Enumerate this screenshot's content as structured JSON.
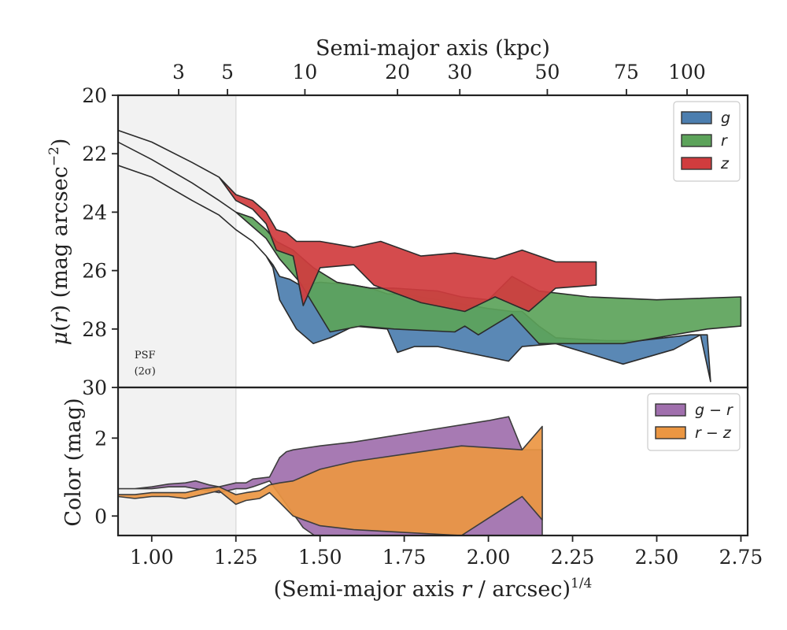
{
  "chart_data": [
    {
      "type": "area",
      "panel": "surface-brightness",
      "xlabel_bottom": "(Semi-major axis r / arcsec)^1/4",
      "xlabel_top": "Semi-major axis (kpc)",
      "ylabel": "μ(r) (mag arcsec^−2)",
      "xlim": [
        0.9,
        2.77
      ],
      "ylim": [
        30,
        20
      ],
      "y_inverted": true,
      "yticks": [
        20,
        22,
        24,
        26,
        28,
        30
      ],
      "xticks": [
        1.0,
        1.25,
        1.5,
        1.75,
        2.0,
        2.25,
        2.5,
        2.75
      ],
      "xtick_labels": [
        "1.00",
        "1.25",
        "1.50",
        "1.75",
        "2.00",
        "2.25",
        "2.50",
        "2.75"
      ],
      "top_ticks": [
        {
          "label": "3",
          "x": 1.08
        },
        {
          "label": "5",
          "x": 1.225
        },
        {
          "label": "10",
          "x": 1.455
        },
        {
          "label": "20",
          "x": 1.73
        },
        {
          "label": "30",
          "x": 1.915
        },
        {
          "label": "50",
          "x": 2.175
        },
        {
          "label": "75",
          "x": 2.41
        },
        {
          "label": "100",
          "x": 2.59
        }
      ],
      "psf_region": {
        "x_max": 1.25,
        "label_line1": "PSF",
        "label_line2": "(2σ)"
      },
      "legend": {
        "position": "top-right",
        "entries": [
          "g",
          "r",
          "z"
        ]
      },
      "series": [
        {
          "name": "g",
          "color": "#4c7eaf",
          "x_upper": [
            0.9,
            1.0,
            1.12,
            1.2,
            1.25,
            1.3,
            1.34,
            1.36,
            1.38,
            1.41,
            1.44,
            1.5,
            1.6,
            1.65,
            1.7,
            1.75,
            1.9,
            2.0,
            2.07,
            2.1,
            2.15,
            2.2,
            2.35,
            2.45,
            2.6,
            2.65
          ],
          "y_upper": [
            22.4,
            22.8,
            23.6,
            24.1,
            24.6,
            25.0,
            25.5,
            25.8,
            26.2,
            26.3,
            26.5,
            26.4,
            26.5,
            26.6,
            26.8,
            26.8,
            27.1,
            27.3,
            27.4,
            27.4,
            27.9,
            28.3,
            28.4,
            28.4,
            28.2,
            28.2
          ],
          "x_lower": [
            0.9,
            1.0,
            1.12,
            1.2,
            1.25,
            1.3,
            1.34,
            1.36,
            1.38,
            1.43,
            1.48,
            1.53,
            1.6,
            1.7,
            1.73,
            1.78,
            1.85,
            2.06,
            2.1,
            2.2,
            2.4,
            2.55,
            2.63,
            2.66
          ],
          "y_lower": [
            22.4,
            22.8,
            23.6,
            24.1,
            24.6,
            25.0,
            25.5,
            25.9,
            27.0,
            28.0,
            28.5,
            28.3,
            27.9,
            28.0,
            28.8,
            28.6,
            28.6,
            29.1,
            28.6,
            28.5,
            29.2,
            28.7,
            28.2,
            29.8
          ]
        },
        {
          "name": "r",
          "color": "#5ca35a",
          "x_upper": [
            0.9,
            1.0,
            1.12,
            1.2,
            1.25,
            1.3,
            1.34,
            1.37,
            1.42,
            1.48,
            1.55,
            1.65,
            1.72,
            1.85,
            1.92,
            2.0,
            2.07,
            2.15,
            2.3,
            2.5,
            2.75
          ],
          "y_upper": [
            21.6,
            22.2,
            23.0,
            23.6,
            24.0,
            24.2,
            24.6,
            25.0,
            25.3,
            25.9,
            26.4,
            26.6,
            26.6,
            26.7,
            26.9,
            27.0,
            26.2,
            26.7,
            26.9,
            27.0,
            26.9
          ],
          "x_lower": [
            0.9,
            1.0,
            1.12,
            1.2,
            1.25,
            1.3,
            1.34,
            1.38,
            1.44,
            1.53,
            1.62,
            1.72,
            1.9,
            1.93,
            1.97,
            2.07,
            2.15,
            2.4,
            2.65,
            2.75
          ],
          "y_lower": [
            21.6,
            22.2,
            23.0,
            23.6,
            24.0,
            24.5,
            24.9,
            25.6,
            26.4,
            28.1,
            27.9,
            28.0,
            28.1,
            27.9,
            28.2,
            27.5,
            28.5,
            28.5,
            28.0,
            27.9
          ]
        },
        {
          "name": "z",
          "color": "#d03c3e",
          "x_upper": [
            0.9,
            1.0,
            1.12,
            1.2,
            1.25,
            1.3,
            1.34,
            1.37,
            1.4,
            1.43,
            1.5,
            1.6,
            1.68,
            1.8,
            1.9,
            2.02,
            2.1,
            2.2,
            2.32
          ],
          "y_upper": [
            21.2,
            21.6,
            22.3,
            22.8,
            23.4,
            23.6,
            24.0,
            24.6,
            24.7,
            25.0,
            25.0,
            25.2,
            25.0,
            25.5,
            25.4,
            25.6,
            25.3,
            25.7,
            25.7
          ],
          "x_lower": [
            0.9,
            1.0,
            1.12,
            1.2,
            1.25,
            1.3,
            1.34,
            1.37,
            1.42,
            1.45,
            1.5,
            1.6,
            1.66,
            1.8,
            1.93,
            2.02,
            2.12,
            2.2,
            2.32
          ],
          "y_lower": [
            21.2,
            21.6,
            22.3,
            22.8,
            23.6,
            23.9,
            24.4,
            25.3,
            25.5,
            27.2,
            25.9,
            25.8,
            26.5,
            27.1,
            27.4,
            26.9,
            27.4,
            26.6,
            26.5
          ]
        }
      ]
    },
    {
      "type": "area",
      "panel": "color",
      "ylabel": "Color (mag)",
      "xlim": [
        0.9,
        2.77
      ],
      "ylim": [
        -0.5,
        3.3
      ],
      "yticks": [
        0,
        2
      ],
      "legend": {
        "position": "top-right",
        "entries": [
          "g − r",
          "r − z"
        ]
      },
      "series": [
        {
          "name": "g − r",
          "color": "#a06fad",
          "x_upper": [
            0.9,
            0.95,
            1.0,
            1.05,
            1.1,
            1.13,
            1.17,
            1.2,
            1.25,
            1.28,
            1.3,
            1.35,
            1.38,
            1.4,
            1.42,
            1.5,
            1.6,
            2.0,
            2.06,
            2.1,
            2.16
          ],
          "y_upper": [
            0.7,
            0.7,
            0.75,
            0.82,
            0.85,
            0.9,
            0.8,
            0.75,
            0.85,
            0.85,
            0.95,
            1.0,
            1.5,
            1.65,
            1.7,
            1.8,
            1.9,
            2.45,
            2.55,
            1.7,
            1.7
          ],
          "x_lower": [
            0.9,
            0.95,
            1.0,
            1.05,
            1.1,
            1.13,
            1.17,
            1.2,
            1.25,
            1.28,
            1.3,
            1.35,
            1.4,
            1.45,
            1.5,
            1.6,
            2.06,
            2.1,
            2.16
          ],
          "y_lower": [
            0.7,
            0.7,
            0.7,
            0.75,
            0.75,
            0.7,
            0.65,
            0.6,
            0.7,
            0.7,
            0.75,
            0.9,
            0.3,
            -0.3,
            -0.6,
            -0.6,
            -0.6,
            -0.6,
            -0.6
          ]
        },
        {
          "name": "r − z",
          "color": "#eb9642",
          "x_upper": [
            0.9,
            0.95,
            1.0,
            1.05,
            1.1,
            1.15,
            1.2,
            1.25,
            1.28,
            1.32,
            1.35,
            1.38,
            1.42,
            1.5,
            1.6,
            1.92,
            2.1,
            2.16
          ],
          "y_upper": [
            0.55,
            0.55,
            0.6,
            0.6,
            0.6,
            0.7,
            0.75,
            0.55,
            0.6,
            0.65,
            0.8,
            0.85,
            0.9,
            1.2,
            1.4,
            1.8,
            1.7,
            2.3
          ],
          "x_lower": [
            0.9,
            0.95,
            1.0,
            1.05,
            1.1,
            1.15,
            1.2,
            1.25,
            1.28,
            1.32,
            1.35,
            1.38,
            1.42,
            1.5,
            1.6,
            1.92,
            2.1,
            2.16
          ],
          "y_lower": [
            0.5,
            0.45,
            0.5,
            0.5,
            0.45,
            0.55,
            0.65,
            0.3,
            0.4,
            0.45,
            0.6,
            0.35,
            0.0,
            -0.25,
            -0.35,
            -0.5,
            0.5,
            -0.1
          ]
        }
      ]
    }
  ]
}
